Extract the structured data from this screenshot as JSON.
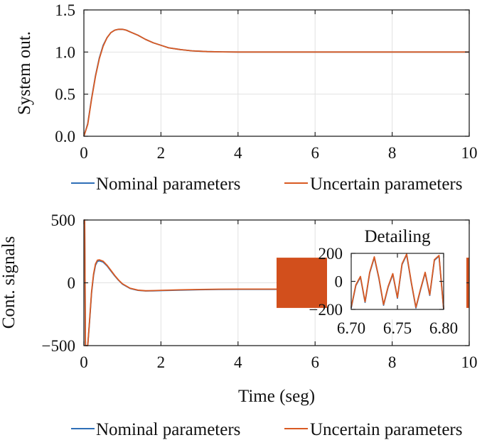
{
  "colors": {
    "nominal": "#2e6fb7",
    "uncertain": "#d95a22",
    "axis": "#222222",
    "grid": "#e2e2e2"
  },
  "chart_data": [
    {
      "type": "line",
      "title": "",
      "xlabel": "",
      "ylabel": "System out.",
      "xlim": [
        0,
        10
      ],
      "ylim": [
        0,
        1.5
      ],
      "xticks": [
        "0",
        "2",
        "4",
        "6",
        "8",
        "10"
      ],
      "yticks": [
        "0.0",
        "0.5",
        "1.0",
        "1.5"
      ],
      "grid": true,
      "legend_position": "below",
      "x": [
        0,
        0.1,
        0.2,
        0.3,
        0.4,
        0.5,
        0.6,
        0.7,
        0.8,
        0.9,
        1.0,
        1.1,
        1.2,
        1.4,
        1.6,
        1.8,
        2.0,
        2.2,
        2.5,
        2.8,
        3.2,
        3.6,
        4.0,
        5.0,
        6.0,
        7.0,
        8.0,
        9.0,
        10.0
      ],
      "series": [
        {
          "name": "Nominal parameters",
          "values": [
            0,
            0.15,
            0.45,
            0.72,
            0.93,
            1.08,
            1.17,
            1.23,
            1.26,
            1.27,
            1.27,
            1.26,
            1.24,
            1.2,
            1.15,
            1.11,
            1.08,
            1.05,
            1.03,
            1.015,
            1.005,
            1.002,
            1.0,
            1.0,
            1.0,
            1.0,
            1.0,
            1.0,
            1.0
          ]
        },
        {
          "name": "Uncertain parameters",
          "values": [
            0,
            0.14,
            0.44,
            0.71,
            0.92,
            1.07,
            1.17,
            1.23,
            1.26,
            1.27,
            1.27,
            1.26,
            1.24,
            1.2,
            1.15,
            1.11,
            1.08,
            1.05,
            1.03,
            1.015,
            1.005,
            1.002,
            1.0,
            1.0,
            1.0,
            1.0,
            1.0,
            1.0,
            1.0
          ]
        }
      ]
    },
    {
      "type": "line",
      "title": "",
      "xlabel": "Time (seg)",
      "ylabel": "Cont. signals",
      "xlim": [
        0,
        10
      ],
      "ylim": [
        -500,
        500
      ],
      "xticks": [
        "0",
        "2",
        "4",
        "6",
        "8",
        "10"
      ],
      "yticks": [
        "−500",
        "0",
        "500"
      ],
      "grid": true,
      "legend_position": "below",
      "x": [
        0.0,
        0.02,
        0.04,
        0.06,
        0.08,
        0.1,
        0.15,
        0.2,
        0.25,
        0.3,
        0.35,
        0.4,
        0.5,
        0.6,
        0.7,
        0.8,
        0.9,
        1.0,
        1.2,
        1.4,
        1.6,
        1.8,
        2.0,
        2.5,
        3.0,
        3.5,
        4.0,
        4.5,
        5.0
      ],
      "series": [
        {
          "name": "Nominal parameters",
          "values": [
            500,
            500,
            -500,
            -500,
            -500,
            -500,
            -300,
            -80,
            60,
            140,
            170,
            175,
            165,
            135,
            95,
            55,
            20,
            -10,
            -45,
            -60,
            -65,
            -64,
            -62,
            -58,
            -55,
            -53,
            -52,
            -52,
            -52
          ]
        },
        {
          "name": "Uncertain parameters",
          "values": [
            500,
            500,
            -500,
            -500,
            -500,
            -500,
            -290,
            -70,
            70,
            150,
            180,
            183,
            172,
            140,
            100,
            58,
            22,
            -8,
            -43,
            -58,
            -63,
            -62,
            -60,
            -56,
            -53,
            -51,
            -50,
            -50,
            -50
          ]
        }
      ],
      "chattering_band": {
        "x_range": [
          5.0,
          10.0
        ],
        "y_range": [
          -200,
          200
        ]
      },
      "inset": {
        "title": "Detailing",
        "xlim": [
          6.7,
          6.8
        ],
        "ylim": [
          -200,
          200
        ],
        "xticks": [
          "6.70",
          "6.75",
          "6.80"
        ],
        "yticks": [
          "−200",
          "0",
          "200"
        ],
        "x": [
          6.7,
          6.705,
          6.71,
          6.715,
          6.72,
          6.725,
          6.73,
          6.735,
          6.74,
          6.745,
          6.75,
          6.755,
          6.76,
          6.765,
          6.77,
          6.775,
          6.78,
          6.785,
          6.79,
          6.795,
          6.8
        ],
        "series": [
          {
            "name": "Nominal parameters",
            "values": [
              -190,
              -30,
              30,
              -150,
              60,
              170,
              20,
              -170,
              -40,
              50,
              -120,
              120,
              190,
              -10,
              -190,
              -60,
              60,
              -100,
              150,
              180,
              -200
            ]
          },
          {
            "name": "Uncertain parameters",
            "values": [
              -185,
              -25,
              35,
              -145,
              65,
              175,
              25,
              -165,
              -35,
              55,
              -115,
              125,
              195,
              -5,
              -185,
              -55,
              65,
              -95,
              155,
              185,
              -195
            ]
          }
        ]
      }
    }
  ]
}
